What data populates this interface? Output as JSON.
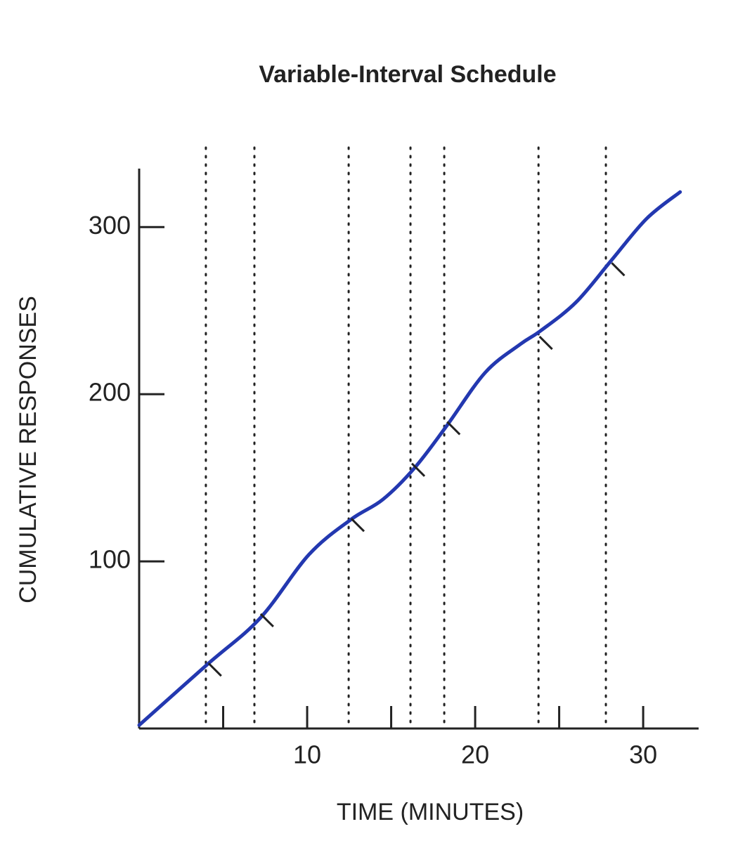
{
  "chart_data": {
    "type": "line",
    "title": "Variable-Interval Schedule",
    "x_label": "TIME (MINUTES)",
    "y_label": "CUMULATIVE RESPONSES",
    "xlim": [
      0,
      33.3
    ],
    "ylim": [
      0,
      335
    ],
    "xticks": [
      10,
      20,
      30
    ],
    "x_minor_ticks": [
      5,
      15,
      25
    ],
    "yticks": [
      100,
      200,
      300
    ],
    "series": [
      {
        "name": "Cumulative responses",
        "color": "#2338b0",
        "x": [
          0,
          4.1,
          7.2,
          10.1,
          12.6,
          14.5,
          16.4,
          18.3,
          20.6,
          22.7,
          23.9,
          26.0,
          28.1,
          30.2,
          32.2
        ],
        "values": [
          2,
          38.7,
          66,
          104,
          125,
          137,
          156,
          181,
          213,
          230,
          238,
          255,
          280,
          305,
          321
        ]
      }
    ],
    "intervals": [
      3.97,
      6.86,
      12.47,
      16.15,
      18.16,
      23.77,
      27.78
    ],
    "reinforcements": {
      "x": [
        4.3,
        7.4,
        12.8,
        16.4,
        18.5,
        24.0,
        28.3
      ],
      "y": [
        36.5,
        66,
        123,
        156,
        181,
        232,
        276
      ]
    }
  }
}
